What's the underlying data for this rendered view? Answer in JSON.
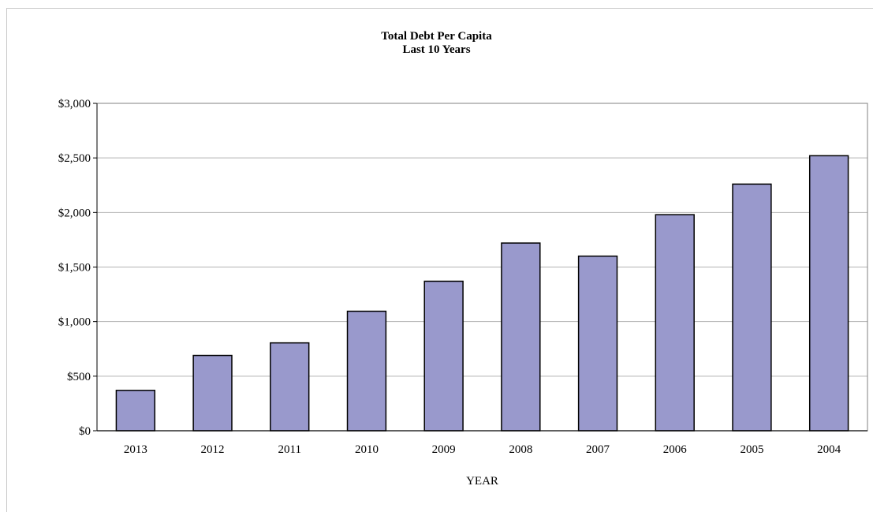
{
  "chart_data": {
    "type": "bar",
    "title": "Total Debt Per Capita",
    "subtitle": "Last 10 Years",
    "xlabel": "YEAR",
    "ylabel": "",
    "categories": [
      "2013",
      "2012",
      "2011",
      "2010",
      "2009",
      "2008",
      "2007",
      "2006",
      "2005",
      "2004"
    ],
    "values": [
      370,
      690,
      805,
      1095,
      1370,
      1720,
      1600,
      1980,
      2260,
      2520
    ],
    "ylim": [
      0,
      3000
    ],
    "yticks": [
      0,
      500,
      1000,
      1500,
      2000,
      2500,
      3000
    ],
    "ytick_labels": [
      "$0",
      "$500",
      "$1,000",
      "$1,500",
      "$2,000",
      "$2,500",
      "$3,000"
    ],
    "grid": true,
    "legend": false,
    "bar_color": "#9999cc",
    "bar_edge_color": "#000000",
    "grid_color": "#b3b3b3"
  }
}
